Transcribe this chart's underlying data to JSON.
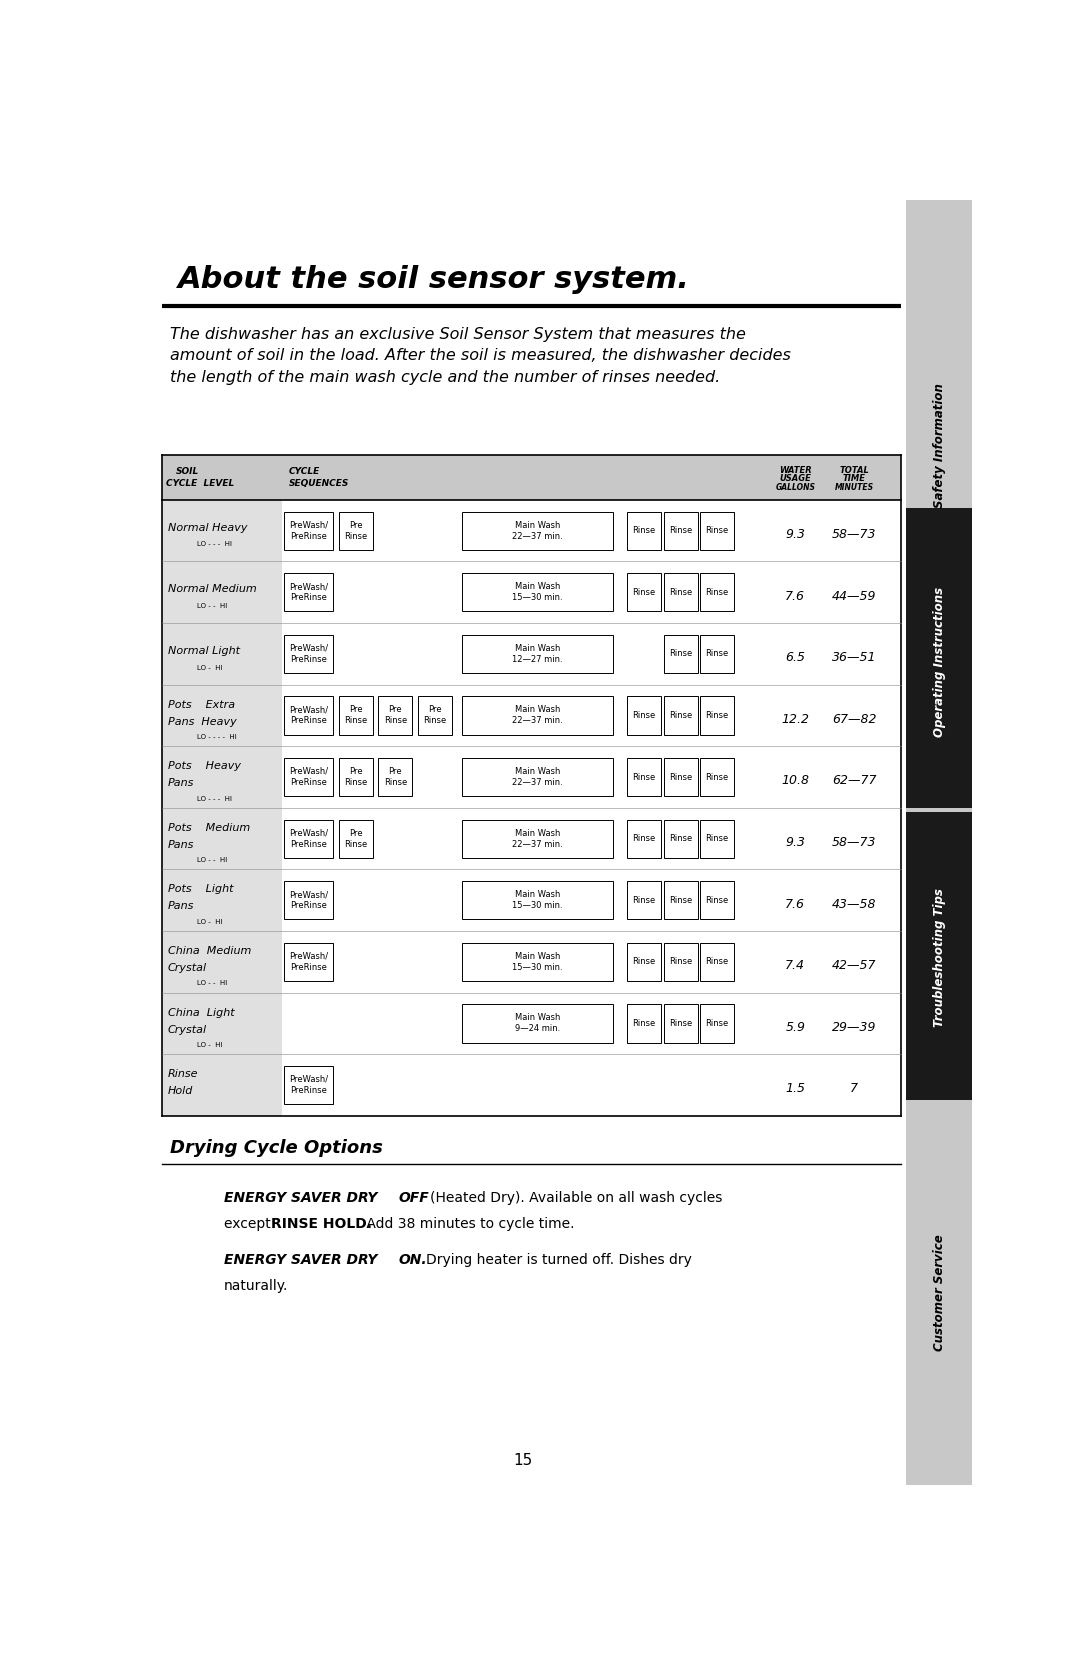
{
  "title": "About the soil sensor system.",
  "subtitle": "The dishwasher has an exclusive Soil Sensor System that measures the\namount of soil in the load. After the soil is measured, the dishwasher decides\nthe length of the main wash cycle and the number of rinses needed.",
  "rows": [
    {
      "cycle": "Normal Heavy",
      "level": "LO - - -  HI",
      "boxes": [
        [
          "PreWash/\nPreRinse"
        ],
        [
          "Pre\nRinse"
        ],
        [],
        [],
        [
          "Main Wash\n22—37 min."
        ],
        [
          "Rinse"
        ],
        [
          "Rinse"
        ],
        [
          "Rinse"
        ]
      ],
      "water": "9.3",
      "time": "58—73"
    },
    {
      "cycle": "Normal Medium",
      "level": "LO - -  HI",
      "boxes": [
        [
          "PreWash/\nPreRinse"
        ],
        [],
        [],
        [],
        [
          "Main Wash\n15—30 min."
        ],
        [
          "Rinse"
        ],
        [
          "Rinse"
        ],
        [
          "Rinse"
        ]
      ],
      "water": "7.6",
      "time": "44—59"
    },
    {
      "cycle": "Normal Light",
      "level": "LO -  HI",
      "boxes": [
        [
          "PreWash/\nPreRinse"
        ],
        [],
        [],
        [],
        [
          "Main Wash\n12—27 min."
        ],
        [],
        [
          "Rinse"
        ],
        [
          "Rinse"
        ]
      ],
      "water": "6.5",
      "time": "36—51"
    },
    {
      "cycle": "Pots    Extra\nPans  Heavy",
      "level": "LO - - - -  HI",
      "boxes": [
        [
          "PreWash/\nPreRinse"
        ],
        [
          "Pre\nRinse"
        ],
        [
          "Pre\nRinse"
        ],
        [
          "Pre\nRinse"
        ],
        [
          "Main Wash\n22—37 min."
        ],
        [
          "Rinse"
        ],
        [
          "Rinse"
        ],
        [
          "Rinse"
        ]
      ],
      "water": "12.2",
      "time": "67—82"
    },
    {
      "cycle": "Pots    Heavy\nPans",
      "level": "LO - - -  HI",
      "boxes": [
        [
          "PreWash/\nPreRinse"
        ],
        [
          "Pre\nRinse"
        ],
        [
          "Pre\nRinse"
        ],
        [],
        [
          "Main Wash\n22—37 min."
        ],
        [
          "Rinse"
        ],
        [
          "Rinse"
        ],
        [
          "Rinse"
        ]
      ],
      "water": "10.8",
      "time": "62—77"
    },
    {
      "cycle": "Pots    Medium\nPans",
      "level": "LO - -  HI",
      "boxes": [
        [
          "PreWash/\nPreRinse"
        ],
        [
          "Pre\nRinse"
        ],
        [],
        [],
        [
          "Main Wash\n22—37 min."
        ],
        [
          "Rinse"
        ],
        [
          "Rinse"
        ],
        [
          "Rinse"
        ]
      ],
      "water": "9.3",
      "time": "58—73"
    },
    {
      "cycle": "Pots    Light\nPans",
      "level": "LO -  HI",
      "boxes": [
        [
          "PreWash/\nPreRinse"
        ],
        [],
        [],
        [],
        [
          "Main Wash\n15—30 min."
        ],
        [
          "Rinse"
        ],
        [
          "Rinse"
        ],
        [
          "Rinse"
        ]
      ],
      "water": "7.6",
      "time": "43—58"
    },
    {
      "cycle": "China  Medium\nCrystal",
      "level": "LO - -  HI",
      "boxes": [
        [
          "PreWash/\nPreRinse"
        ],
        [],
        [],
        [],
        [
          "Main Wash\n15—30 min."
        ],
        [
          "Rinse"
        ],
        [
          "Rinse"
        ],
        [
          "Rinse"
        ]
      ],
      "water": "7.4",
      "time": "42—57"
    },
    {
      "cycle": "China  Light\nCrystal",
      "level": "LO -  HI",
      "boxes": [
        [],
        [],
        [],
        [],
        [
          "Main Wash\n9—24 min."
        ],
        [
          "Rinse"
        ],
        [
          "Rinse"
        ],
        [
          "Rinse"
        ]
      ],
      "water": "5.9",
      "time": "29—39"
    },
    {
      "cycle": "Rinse\nHold",
      "level": "",
      "boxes": [
        [
          "PreWash/\nPreRinse"
        ],
        [],
        [],
        [],
        [],
        [],
        [],
        []
      ],
      "water": "1.5",
      "time": "7"
    }
  ],
  "drying_title": "Drying Cycle Options",
  "page_num": "15",
  "sidebar_items": [
    "Safety Information",
    "Operating Instructions",
    "Troubleshooting Tips",
    "Customer Service"
  ],
  "bg_color": "#ffffff",
  "sidebar_color": "#c8c8c8",
  "table_header_bg": "#c8c8c8",
  "table_row_bg": "#e0e0e0"
}
